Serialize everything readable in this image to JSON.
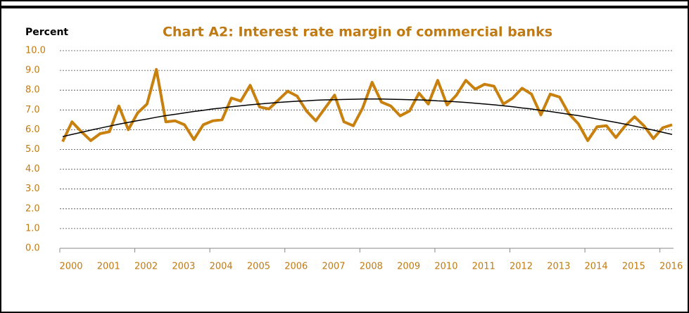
{
  "chart_data": {
    "type": "line",
    "title": "Chart A2: Interest rate margin of commercial banks",
    "y_label": "Percent",
    "categories": [
      "2000",
      null,
      null,
      null,
      "2001",
      null,
      null,
      null,
      "2002",
      null,
      null,
      null,
      "2003",
      null,
      null,
      null,
      "2004",
      null,
      null,
      null,
      "2005",
      null,
      null,
      null,
      "2006",
      null,
      null,
      null,
      "2007",
      null,
      null,
      null,
      "2008",
      null,
      null,
      null,
      "2009",
      null,
      null,
      null,
      "2010",
      null,
      null,
      null,
      "2011",
      null,
      null,
      null,
      "2012",
      null,
      null,
      null,
      "2013",
      null,
      null,
      null,
      "2014",
      null,
      null,
      null,
      "2015",
      null,
      null,
      null,
      "2016",
      null
    ],
    "series": [
      {
        "color": "#c8800f",
        "values": [
          5.4,
          6.4,
          5.9,
          5.45,
          5.8,
          5.9,
          7.2,
          6.0,
          6.85,
          7.3,
          9.05,
          6.4,
          6.45,
          6.25,
          5.5,
          6.25,
          6.45,
          6.5,
          7.6,
          7.45,
          8.25,
          7.15,
          7.05,
          7.5,
          7.95,
          7.7,
          6.95,
          6.45,
          7.1,
          7.75,
          6.4,
          6.2,
          7.1,
          8.4,
          7.4,
          7.2,
          6.7,
          6.95,
          7.85,
          7.3,
          8.5,
          7.25,
          7.75,
          8.5,
          8.05,
          8.3,
          8.2,
          7.3,
          7.6,
          8.1,
          7.8,
          6.75,
          7.8,
          7.65,
          6.8,
          6.3,
          5.45,
          6.15,
          6.2,
          5.6,
          6.2,
          6.65,
          6.2,
          5.55,
          6.1,
          6.25
        ]
      },
      {
        "color": "#000000",
        "values": [
          5.65,
          5.76,
          5.87,
          5.98,
          6.08,
          6.18,
          6.28,
          6.37,
          6.46,
          6.54,
          6.63,
          6.71,
          6.78,
          6.85,
          6.92,
          6.98,
          7.05,
          7.1,
          7.16,
          7.21,
          7.26,
          7.3,
          7.34,
          7.38,
          7.41,
          7.44,
          7.46,
          7.49,
          7.51,
          7.52,
          7.53,
          7.54,
          7.55,
          7.55,
          7.55,
          7.54,
          7.53,
          7.52,
          7.51,
          7.49,
          7.46,
          7.44,
          7.41,
          7.38,
          7.34,
          7.3,
          7.26,
          7.21,
          7.16,
          7.1,
          7.05,
          6.98,
          6.92,
          6.85,
          6.78,
          6.71,
          6.63,
          6.54,
          6.46,
          6.37,
          6.28,
          6.18,
          6.08,
          5.98,
          5.87,
          5.76
        ]
      }
    ],
    "ylim": [
      0,
      10
    ],
    "yticks": [
      {
        "value": 0,
        "label": "0.0"
      },
      {
        "value": 1,
        "label": "1.0"
      },
      {
        "value": 2,
        "label": "2.0"
      },
      {
        "value": 3,
        "label": "3.0"
      },
      {
        "value": 4,
        "label": "4.0"
      },
      {
        "value": 5,
        "label": "5.0"
      },
      {
        "value": 6,
        "label": "6.0"
      },
      {
        "value": 7,
        "label": "7.0"
      },
      {
        "value": 8,
        "label": "8.0"
      },
      {
        "value": 9,
        "label": "9.0"
      },
      {
        "value": 10,
        "label": "10.0"
      }
    ],
    "grid": true
  }
}
